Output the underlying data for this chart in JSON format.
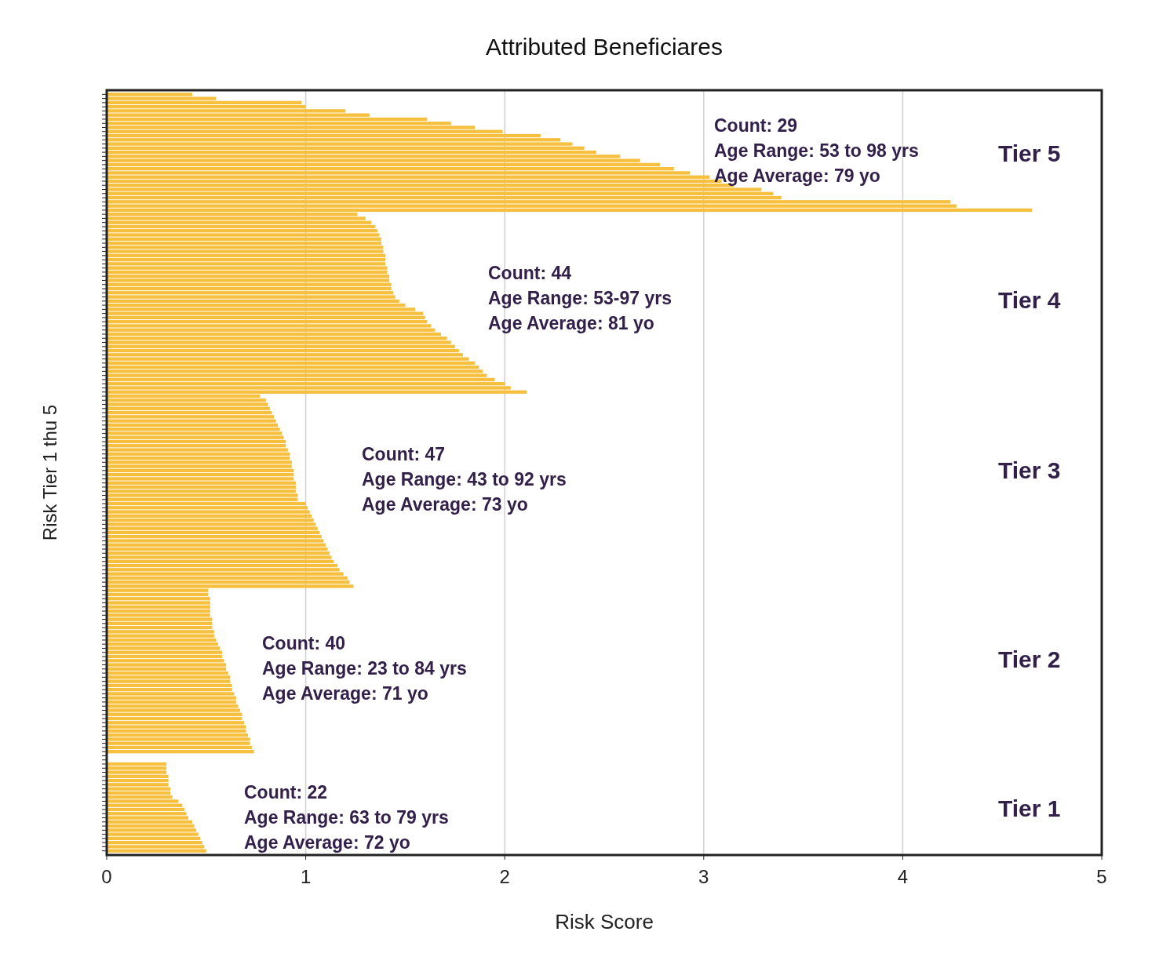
{
  "chart_data": {
    "type": "bar",
    "orientation": "horizontal",
    "title": "Attributed Beneficiares",
    "xlabel": "Risk Score",
    "ylabel": "Risk Tier 1 thu 5",
    "categories": [
      null,
      null,
      null,
      null,
      null,
      null,
      null,
      null,
      null,
      null,
      null,
      null,
      null,
      null,
      null,
      null,
      null,
      null,
      null,
      null,
      null,
      null,
      null,
      null,
      null,
      null,
      null,
      null,
      null,
      null,
      null,
      null,
      null,
      null,
      null,
      null,
      null,
      null,
      null,
      null,
      null,
      null,
      null,
      null,
      null,
      null,
      null,
      null,
      null,
      null,
      null,
      null,
      null,
      null,
      null,
      null,
      null,
      null,
      null,
      null,
      null,
      null,
      null,
      null,
      null,
      null,
      null,
      null,
      null,
      null,
      null,
      null,
      null,
      null,
      null,
      null,
      null,
      null,
      null,
      null,
      null,
      null,
      null,
      null,
      null,
      null,
      null,
      null,
      null,
      null,
      null,
      null,
      null,
      null,
      null,
      null,
      null,
      null,
      null,
      null,
      null,
      null,
      null,
      null,
      null,
      null,
      null,
      null,
      null,
      null,
      null,
      null,
      null,
      null,
      null,
      null,
      null,
      null,
      null,
      null,
      null,
      null,
      null,
      null,
      null,
      null,
      null,
      null,
      null,
      null,
      null,
      null,
      null,
      null,
      null,
      null,
      null,
      null,
      null,
      null,
      null,
      null,
      null,
      null,
      null,
      null,
      null,
      null,
      null,
      null,
      null,
      null,
      null,
      null,
      null,
      null,
      null,
      null,
      null,
      null,
      null,
      null,
      null,
      null,
      null,
      null,
      null,
      null,
      null,
      null,
      null,
      null,
      null,
      null,
      null,
      null,
      null,
      null,
      null,
      null,
      null,
      null,
      null,
      null
    ],
    "values": [
      0.43,
      0.55,
      0.98,
      1.0,
      1.2,
      1.32,
      1.61,
      1.73,
      1.85,
      1.99,
      2.18,
      2.28,
      2.34,
      2.4,
      2.46,
      2.58,
      2.68,
      2.78,
      2.85,
      2.93,
      3.03,
      3.09,
      3.15,
      3.29,
      3.35,
      3.39,
      4.24,
      4.27,
      4.65,
      1.26,
      1.3,
      1.33,
      1.35,
      1.36,
      1.37,
      1.38,
      1.38,
      1.39,
      1.39,
      1.4,
      1.4,
      1.4,
      1.41,
      1.41,
      1.42,
      1.42,
      1.43,
      1.43,
      1.44,
      1.45,
      1.47,
      1.5,
      1.55,
      1.59,
      1.6,
      1.61,
      1.63,
      1.65,
      1.68,
      1.71,
      1.73,
      1.75,
      1.77,
      1.79,
      1.82,
      1.85,
      1.87,
      1.89,
      1.91,
      1.95,
      2.0,
      2.03,
      2.11,
      0.77,
      0.8,
      0.81,
      0.82,
      0.83,
      0.84,
      0.85,
      0.86,
      0.87,
      0.88,
      0.89,
      0.9,
      0.9,
      0.91,
      0.92,
      0.92,
      0.93,
      0.93,
      0.94,
      0.94,
      0.94,
      0.95,
      0.95,
      0.95,
      0.96,
      0.96,
      1.0,
      1.01,
      1.02,
      1.03,
      1.04,
      1.05,
      1.06,
      1.07,
      1.08,
      1.09,
      1.1,
      1.11,
      1.12,
      1.13,
      1.14,
      1.16,
      1.17,
      1.19,
      1.21,
      1.22,
      1.24,
      0.51,
      0.51,
      0.52,
      0.52,
      0.52,
      0.52,
      0.52,
      0.53,
      0.53,
      0.53,
      0.54,
      0.54,
      0.55,
      0.56,
      0.57,
      0.58,
      0.58,
      0.59,
      0.6,
      0.6,
      0.61,
      0.62,
      0.62,
      0.63,
      0.63,
      0.64,
      0.65,
      0.65,
      0.66,
      0.67,
      0.68,
      0.68,
      0.69,
      0.7,
      0.7,
      0.71,
      0.72,
      0.72,
      0.73,
      0.74,
      null,
      null,
      0.3,
      0.3,
      0.3,
      0.31,
      0.31,
      0.31,
      0.32,
      0.32,
      0.33,
      0.36,
      0.38,
      0.39,
      0.4,
      0.41,
      0.43,
      0.44,
      0.45,
      0.46,
      0.47,
      0.48,
      0.49,
      0.5
    ],
    "color": "#f6bf3e",
    "xlim": [
      0,
      5
    ],
    "xticks": [
      0,
      1,
      2,
      3,
      4,
      5
    ],
    "grid": "x",
    "tick_labels": "x",
    "annotations": [
      "Count: 29\nAge Range: 53 to 98 yrs\nAge Average: 79 yo",
      "Tier 5",
      "Count: 44\nAge Range: 53-97 yrs\nAge Average: 81 yo",
      "Tier 4",
      "Count: 47\nAge Range: 43 to 92 yrs\nAge Average: 73 yo",
      "Tier 3",
      "Count: 40\nAge Range: 23 to 84 yrs\nAge Average: 71 yo",
      "Tier 2",
      "Count: 22\nAge Range: 63 to 79 yrs\nAge Average: 72 yo",
      "Tier 1"
    ]
  }
}
